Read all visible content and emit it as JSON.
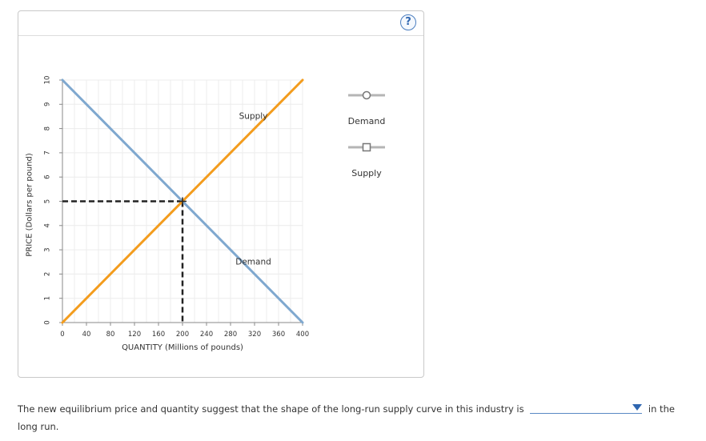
{
  "help": {
    "label": "?"
  },
  "chart_data": {
    "type": "line",
    "xlabel": "QUANTITY (Millions of pounds)",
    "ylabel": "PRICE (Dollars per pound)",
    "xlim": [
      0,
      400
    ],
    "ylim": [
      0,
      10
    ],
    "xticks": [
      0,
      40,
      80,
      120,
      160,
      200,
      240,
      280,
      320,
      360,
      400
    ],
    "yticks": [
      0,
      1,
      2,
      3,
      4,
      5,
      6,
      7,
      8,
      9,
      10
    ],
    "grid": true,
    "series": [
      {
        "name": "Demand",
        "color": "#7fa8cf",
        "points": [
          [
            0,
            10
          ],
          [
            400,
            0
          ]
        ]
      },
      {
        "name": "Supply",
        "color": "#f39c1d",
        "points": [
          [
            0,
            0
          ],
          [
            400,
            10
          ]
        ]
      }
    ],
    "annotations": [
      {
        "text": "Supply",
        "x": 318,
        "y": 8.5
      },
      {
        "text": "Demand",
        "x": 318,
        "y": 2.5
      }
    ],
    "equilibrium": {
      "x": 200,
      "y": 5,
      "dashed_guides": true
    },
    "legend": {
      "placement": "right",
      "items": [
        {
          "label": "Demand",
          "marker": "circle"
        },
        {
          "label": "Supply",
          "marker": "square"
        }
      ]
    }
  },
  "question": {
    "text_before": "The new equilibrium price and quantity suggest that the shape of the long-run supply curve in this industry is",
    "text_after": "in the long run.",
    "selected_value": ""
  }
}
